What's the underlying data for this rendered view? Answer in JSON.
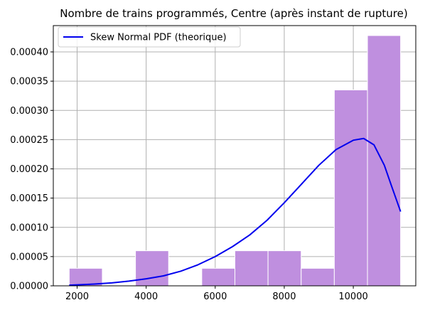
{
  "chart_data": {
    "type": "bar",
    "title": "Nombre de trains programmés, Centre (après instant de rupture)",
    "xlabel": "",
    "ylabel": "",
    "xlim": [
      1310,
      11810
    ],
    "ylim": [
      0,
      0.000445
    ],
    "xticks": [
      2000,
      4000,
      6000,
      8000,
      10000
    ],
    "yticks": [
      0,
      5e-05,
      0.0001,
      0.00015,
      0.0002,
      0.00025,
      0.0003,
      0.00035,
      0.0004
    ],
    "ytick_labels": [
      "0.00000",
      "0.00005",
      "0.00010",
      "0.00015",
      "0.00020",
      "0.00025",
      "0.00030",
      "0.00035",
      "0.00040"
    ],
    "grid": true,
    "histogram": {
      "bin_edges": [
        1770,
        2730,
        3690,
        4650,
        5610,
        6570,
        7530,
        8490,
        9450,
        10410,
        11370
      ],
      "densities": [
        3e-05,
        0,
        6e-05,
        0,
        3e-05,
        6e-05,
        6e-05,
        3e-05,
        0.000335,
        0.000428
      ],
      "color": "#bf8fdf",
      "edgecolor": "#ffffff"
    },
    "curve": {
      "name": "Skew Normal PDF (theorique)",
      "color": "#0000ee",
      "x": [
        1770,
        2500,
        3000,
        3500,
        4000,
        4500,
        5000,
        5500,
        6000,
        6500,
        7000,
        7500,
        8000,
        8500,
        9000,
        9500,
        10000,
        10300,
        10600,
        10900,
        11100,
        11370
      ],
      "y": [
        1e-06,
        3e-06,
        5e-06,
        8e-06,
        1.2e-05,
        1.7e-05,
        2.5e-05,
        3.6e-05,
        5e-05,
        6.7e-05,
        8.7e-05,
        0.000112,
        0.000142,
        0.000174,
        0.000206,
        0.000233,
        0.000249,
        0.000252,
        0.000241,
        0.000206,
        0.000172,
        0.000127
      ]
    },
    "legend": {
      "position": "top-left",
      "entries": [
        "Skew Normal PDF (theorique)"
      ]
    }
  }
}
